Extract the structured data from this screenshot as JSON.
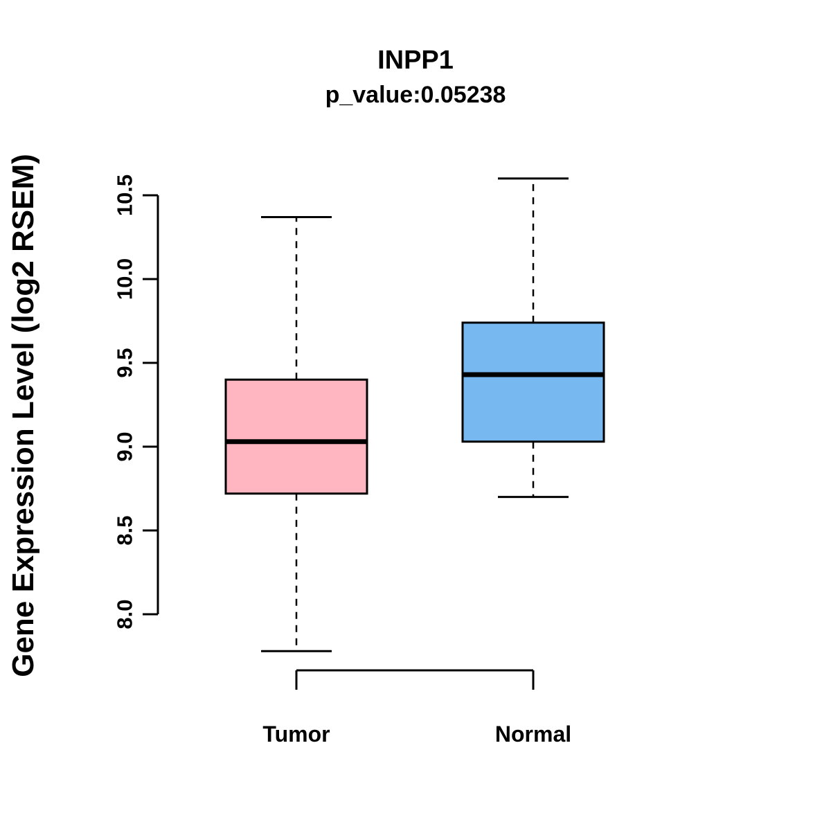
{
  "page": {
    "background": "#ffffff"
  },
  "chart_data": {
    "type": "box",
    "title": "INPP1",
    "subtitle": "p_value:0.05238",
    "p_value": 0.05238,
    "ylabel": "Gene Expression Level (log2 RSEM)",
    "xlabel": "",
    "categories": [
      "Tumor",
      "Normal"
    ],
    "yticks": [
      8.0,
      8.5,
      9.0,
      9.5,
      10.0,
      10.5
    ],
    "ylim": [
      7.7,
      10.65
    ],
    "grid": false,
    "legend": false,
    "axis_color": "#000000",
    "series": [
      {
        "name": "Tumor",
        "color": "#FFB6C1",
        "whisker_low": 7.78,
        "q1": 8.72,
        "median": 9.03,
        "q3": 9.4,
        "whisker_high": 10.37
      },
      {
        "name": "Normal",
        "color": "#76B8EF",
        "whisker_low": 8.7,
        "q1": 9.03,
        "median": 9.43,
        "q3": 9.74,
        "whisker_high": 10.6
      }
    ]
  }
}
